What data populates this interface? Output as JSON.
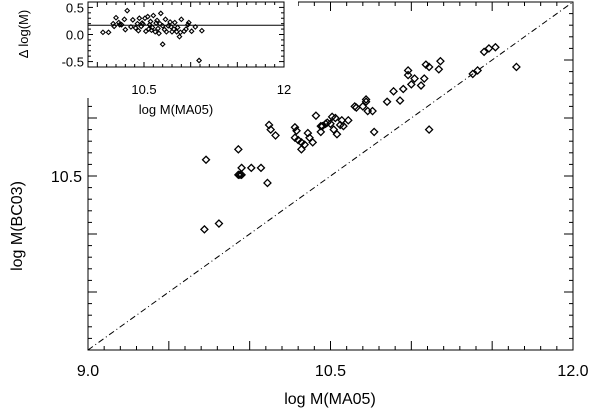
{
  "chart_data": [
    {
      "type": "scatter",
      "title": "",
      "xlabel": "log M(MA05)",
      "ylabel": "log M(BC03)",
      "xlim": [
        9.0,
        12.0
      ],
      "ylim": [
        9.0,
        12.0
      ],
      "x_ticks": [
        "9.0",
        "10.5",
        "12.0"
      ],
      "y_ticks": [
        "10.5"
      ],
      "one_to_one_line": true,
      "marker": "diamond",
      "points": [
        [
          9.72,
          10.04
        ],
        [
          9.73,
          10.64
        ],
        [
          9.81,
          10.09
        ],
        [
          9.93,
          10.73
        ],
        [
          9.93,
          10.51
        ],
        [
          9.94,
          10.51
        ],
        [
          9.95,
          10.51
        ],
        [
          9.95,
          10.57
        ],
        [
          10.01,
          10.57
        ],
        [
          10.07,
          10.57
        ],
        [
          10.11,
          10.44
        ],
        [
          10.12,
          10.94
        ],
        [
          10.13,
          10.9
        ],
        [
          10.16,
          10.85
        ],
        [
          10.28,
          10.83
        ],
        [
          10.28,
          10.92
        ],
        [
          10.29,
          10.89
        ],
        [
          10.3,
          10.81
        ],
        [
          10.32,
          10.73
        ],
        [
          10.32,
          10.79
        ],
        [
          10.34,
          10.77
        ],
        [
          10.36,
          10.87
        ],
        [
          10.37,
          10.83
        ],
        [
          10.39,
          10.79
        ],
        [
          10.41,
          11.02
        ],
        [
          10.44,
          10.88
        ],
        [
          10.44,
          10.93
        ],
        [
          10.45,
          10.93
        ],
        [
          10.47,
          10.95
        ],
        [
          10.48,
          10.96
        ],
        [
          10.5,
          10.95
        ],
        [
          10.51,
          11.01
        ],
        [
          10.52,
          10.9
        ],
        [
          10.53,
          11.0
        ],
        [
          10.54,
          10.86
        ],
        [
          10.56,
          10.94
        ],
        [
          10.57,
          10.98
        ],
        [
          10.58,
          10.93
        ],
        [
          10.61,
          10.98
        ],
        [
          10.65,
          11.1
        ],
        [
          10.66,
          11.09
        ],
        [
          10.7,
          11.1
        ],
        [
          10.72,
          11.16
        ],
        [
          10.72,
          11.14
        ],
        [
          10.73,
          11.06
        ],
        [
          10.76,
          11.06
        ],
        [
          10.77,
          10.88
        ],
        [
          10.85,
          11.14
        ],
        [
          10.89,
          11.23
        ],
        [
          10.93,
          11.15
        ],
        [
          10.95,
          11.25
        ],
        [
          10.98,
          11.37
        ],
        [
          10.98,
          11.41
        ],
        [
          11.0,
          11.29
        ],
        [
          11.02,
          11.34
        ],
        [
          11.06,
          11.28
        ],
        [
          11.08,
          11.34
        ],
        [
          11.09,
          11.46
        ],
        [
          11.11,
          10.9
        ],
        [
          11.11,
          11.44
        ],
        [
          11.17,
          11.42
        ],
        [
          11.18,
          11.49
        ],
        [
          11.38,
          11.38
        ],
        [
          11.41,
          11.41
        ],
        [
          11.45,
          11.57
        ],
        [
          11.48,
          11.6
        ],
        [
          11.52,
          11.61
        ],
        [
          11.65,
          11.44
        ]
      ]
    },
    {
      "type": "scatter",
      "title": "",
      "xlabel": "log M(MA05)",
      "ylabel": "Δ log(M)",
      "xlim": [
        9.9,
        12.0
      ],
      "ylim": [
        -0.6,
        0.6
      ],
      "x_ticks": [
        "10.5",
        "12"
      ],
      "y_ticks": [
        "0.5",
        "0.0",
        "-0.5"
      ],
      "reference_line_y": 0.17,
      "marker": "diamond",
      "points": [
        [
          10.06,
          0.04
        ],
        [
          10.12,
          0.04
        ],
        [
          10.17,
          0.2
        ],
        [
          10.18,
          0.15
        ],
        [
          10.2,
          0.31
        ],
        [
          10.23,
          0.22
        ],
        [
          10.24,
          0.18
        ],
        [
          10.26,
          0.18
        ],
        [
          10.29,
          0.28
        ],
        [
          10.3,
          0.09
        ],
        [
          10.32,
          0.44
        ],
        [
          10.36,
          0.14
        ],
        [
          10.38,
          0.27
        ],
        [
          10.41,
          0.12
        ],
        [
          10.43,
          0.2
        ],
        [
          10.44,
          0.07
        ],
        [
          10.45,
          0.3
        ],
        [
          10.47,
          0.15
        ],
        [
          10.48,
          0.21
        ],
        [
          10.49,
          0.19
        ],
        [
          10.51,
          0.3
        ],
        [
          10.52,
          0.06
        ],
        [
          10.54,
          0.33
        ],
        [
          10.55,
          0.1
        ],
        [
          10.56,
          0.18
        ],
        [
          10.57,
          0.24
        ],
        [
          10.58,
          0.08
        ],
        [
          10.59,
          0.13
        ],
        [
          10.6,
          0.35
        ],
        [
          10.62,
          0.05
        ],
        [
          10.63,
          0.21
        ],
        [
          10.64,
          0.26
        ],
        [
          10.65,
          0.11
        ],
        [
          10.66,
          0.02
        ],
        [
          10.67,
          0.2
        ],
        [
          10.68,
          0.39
        ],
        [
          10.7,
          0.16
        ],
        [
          10.7,
          -0.18
        ],
        [
          10.72,
          0.09
        ],
        [
          10.73,
          0.28
        ],
        [
          10.74,
          0.05
        ],
        [
          10.76,
          0.16
        ],
        [
          10.78,
          0.23
        ],
        [
          10.79,
          0.14
        ],
        [
          10.8,
          0.05
        ],
        [
          10.82,
          0.1
        ],
        [
          10.83,
          0.22
        ],
        [
          10.85,
          0.05
        ],
        [
          10.86,
          0.13
        ],
        [
          10.88,
          -0.04
        ],
        [
          10.89,
          0.04
        ],
        [
          10.9,
          0.28
        ],
        [
          10.93,
          0.06
        ],
        [
          10.95,
          0.1
        ],
        [
          10.97,
          0.18
        ],
        [
          10.98,
          0.22
        ],
        [
          11.01,
          0.06
        ],
        [
          11.05,
          0.14
        ],
        [
          11.09,
          -0.48
        ],
        [
          11.12,
          0.07
        ]
      ]
    }
  ]
}
